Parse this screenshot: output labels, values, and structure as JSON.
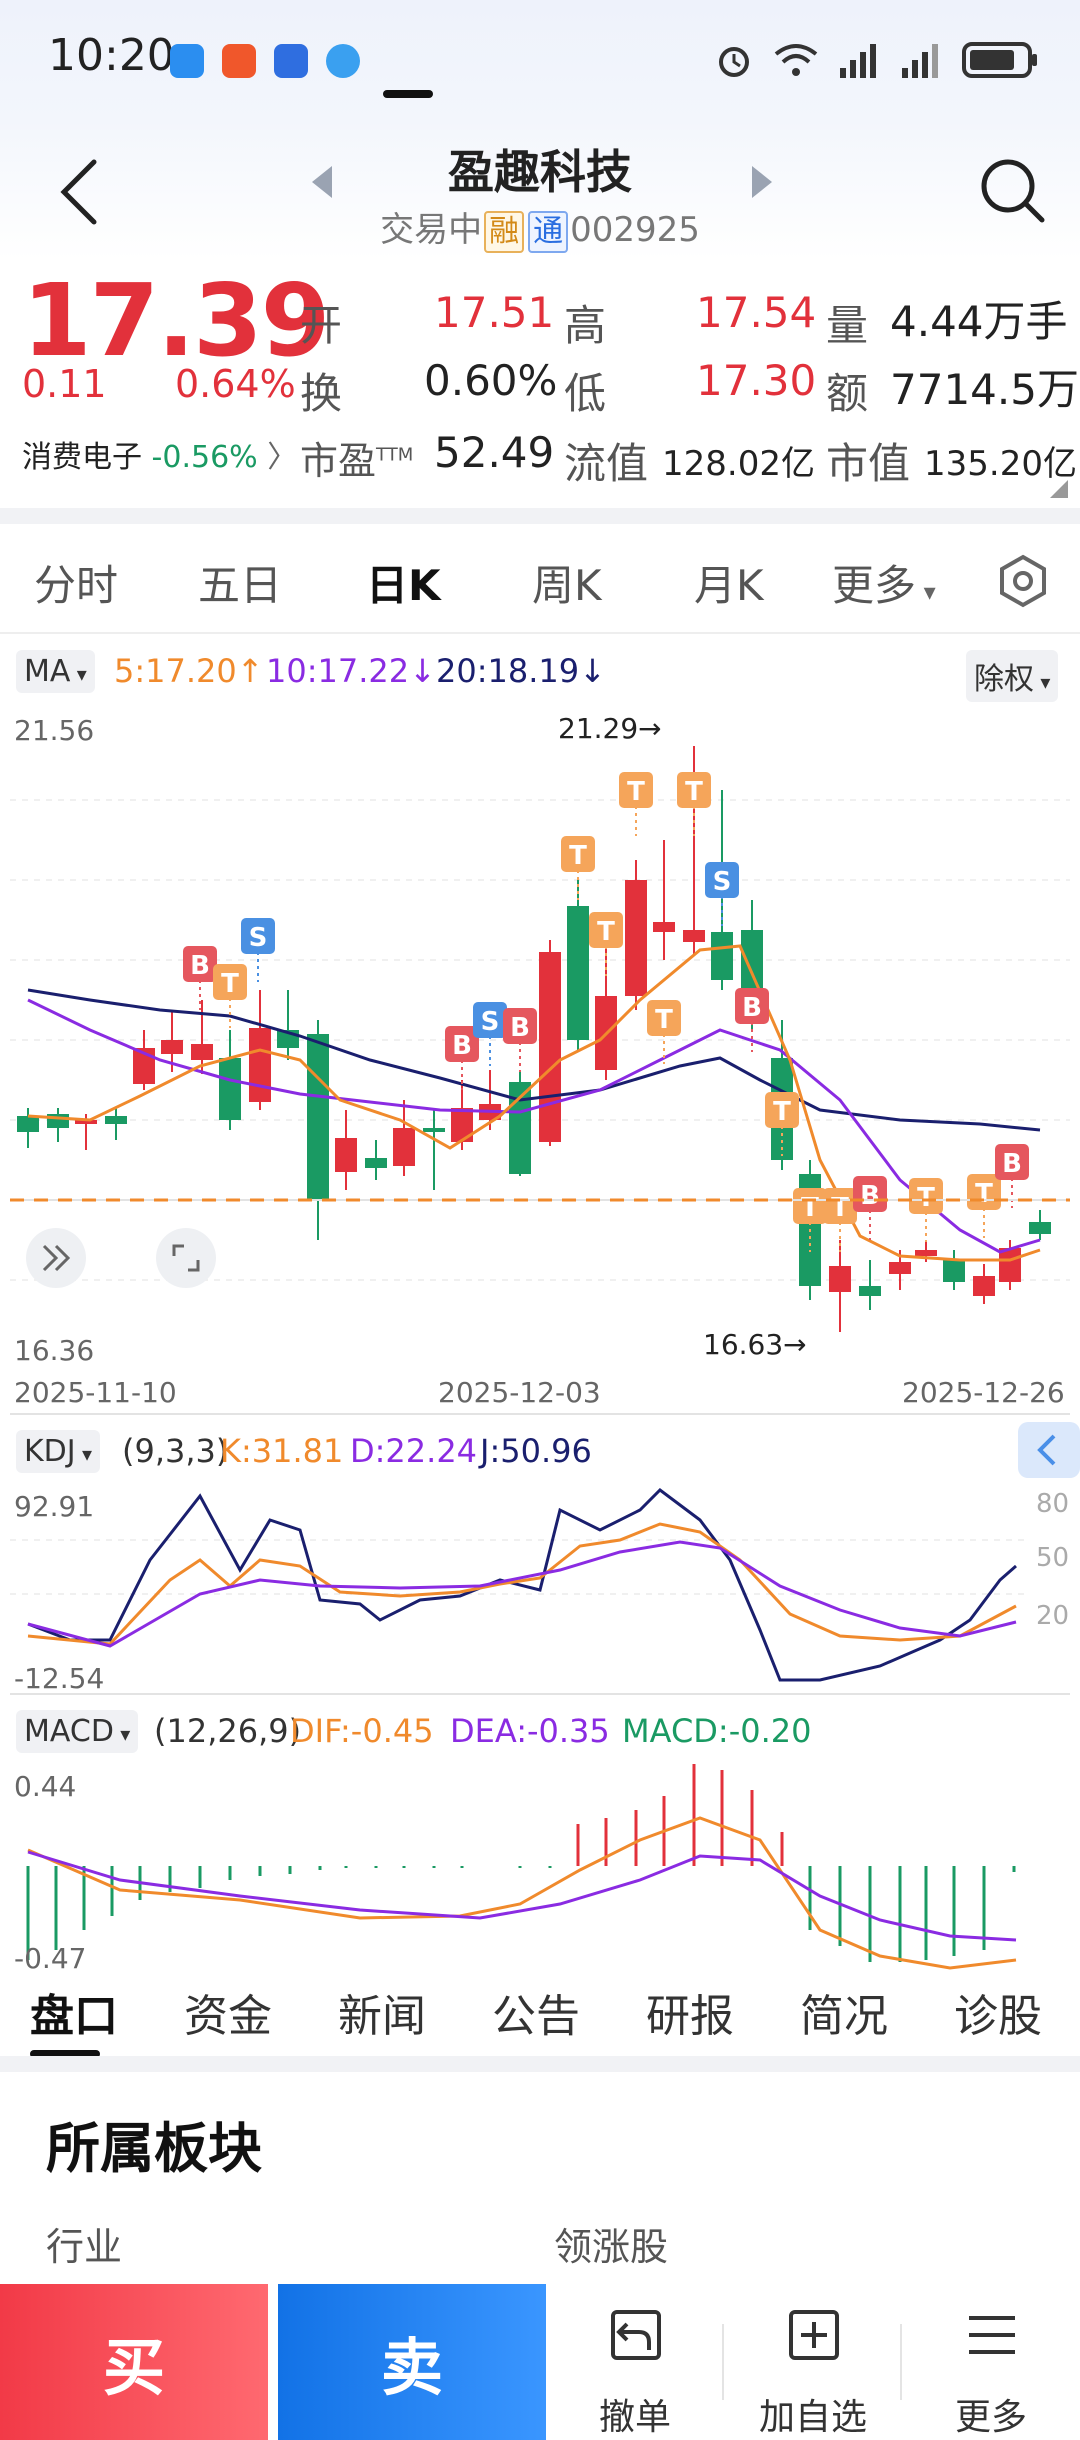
{
  "status_bar": {
    "time": "10:20"
  },
  "header": {
    "stock_name": "盈趣科技",
    "trade_status": "交易中",
    "tag_margin": "融",
    "tag_connect": "通",
    "stock_code": "002925"
  },
  "quote": {
    "price": "17.39",
    "change": "0.11",
    "change_pct": "0.64%",
    "sector_name": "消费电子",
    "sector_change": "-0.56%",
    "open_label": "开",
    "open": "17.51",
    "high_label": "高",
    "high": "17.54",
    "volume_label": "量",
    "volume": "4.44万手",
    "turnover_label": "换",
    "turnover": "0.60%",
    "low_label": "低",
    "low": "17.30",
    "amount_label": "额",
    "amount": "7714.5万",
    "pe_label": "市盈",
    "pe_sup": "TTM",
    "pe": "52.49",
    "float_cap_label": "流值",
    "float_cap": "128.02亿",
    "market_cap_label": "市值",
    "market_cap": "135.20亿"
  },
  "chart_tabs": [
    "分时",
    "五日",
    "日K",
    "周K",
    "月K",
    "更多"
  ],
  "active_chart_tab": "日K",
  "kline": {
    "ma_select": "MA",
    "ma5": "5:17.20↑",
    "ma10": "10:17.22↓",
    "ma20": "20:18.19↓",
    "adjust_select": "除权",
    "y_top": "21.56",
    "y_bottom": "16.36",
    "high_marker": "21.29→",
    "low_marker": "16.63→",
    "dates": [
      "2025-11-10",
      "2025-12-03",
      "2025-12-26"
    ]
  },
  "kdj": {
    "select": "KDJ",
    "params": "(9,3,3)",
    "k": "K:31.81",
    "d": "D:22.24",
    "j": "J:50.96",
    "y_top": "92.91",
    "y_bottom": "-12.54",
    "levels": [
      "80",
      "50",
      "20"
    ]
  },
  "macd": {
    "select": "MACD",
    "params": "(12,26,9)",
    "dif": "DIF:-0.45",
    "dea": "DEA:-0.35",
    "macd": "MACD:-0.20",
    "y_top": "0.44",
    "y_bottom": "-0.47"
  },
  "info_tabs": [
    "盘口",
    "资金",
    "新闻",
    "公告",
    "研报",
    "简况",
    "诊股"
  ],
  "section": {
    "title": "所属板块",
    "industry_label": "行业",
    "leader_label": "领涨股"
  },
  "actions": {
    "buy": "买",
    "sell": "卖",
    "cancel_order": "撤单",
    "add_watch": "加自选",
    "more": "更多"
  },
  "colors": {
    "up": "#e2313b",
    "down": "#1a9a63",
    "ma5": "#f08a2c",
    "ma10": "#8a2be2",
    "ma20": "#1a1f6e",
    "buy": "#f23a47",
    "sell": "#1272e6"
  }
}
